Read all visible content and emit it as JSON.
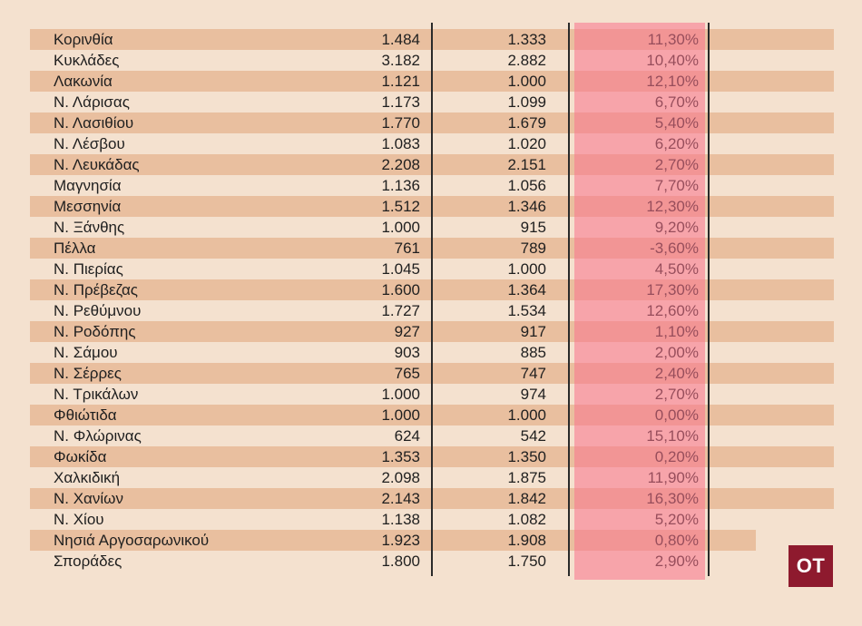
{
  "chart_data": {
    "type": "table",
    "rows": [
      {
        "region": "Κορινθία",
        "v1": "1.484",
        "v2": "1.333",
        "change": "11,30%"
      },
      {
        "region": "Κυκλάδες",
        "v1": "3.182",
        "v2": "2.882",
        "change": "10,40%"
      },
      {
        "region": "Λακωνία",
        "v1": "1.121",
        "v2": "1.000",
        "change": "12,10%"
      },
      {
        "region": "Ν. Λάρισας",
        "v1": "1.173",
        "v2": "1.099",
        "change": "6,70%"
      },
      {
        "region": "Ν. Λασιθίου",
        "v1": "1.770",
        "v2": "1.679",
        "change": "5,40%"
      },
      {
        "region": "Ν. Λέσβου",
        "v1": "1.083",
        "v2": "1.020",
        "change": "6,20%"
      },
      {
        "region": "Ν. Λευκάδας",
        "v1": "2.208",
        "v2": "2.151",
        "change": "2,70%"
      },
      {
        "region": "Μαγνησία",
        "v1": "1.136",
        "v2": "1.056",
        "change": "7,70%"
      },
      {
        "region": "Μεσσηνία",
        "v1": "1.512",
        "v2": "1.346",
        "change": "12,30%"
      },
      {
        "region": "Ν. Ξάνθης",
        "v1": "1.000",
        "v2": "915",
        "change": "9,20%"
      },
      {
        "region": "Πέλλα",
        "v1": "761",
        "v2": "789",
        "change": "-3,60%"
      },
      {
        "region": "Ν. Πιερίας",
        "v1": "1.045",
        "v2": "1.000",
        "change": "4,50%"
      },
      {
        "region": "Ν. Πρέβεζας",
        "v1": "1.600",
        "v2": "1.364",
        "change": "17,30%"
      },
      {
        "region": "Ν. Ρεθύμνου",
        "v1": "1.727",
        "v2": "1.534",
        "change": "12,60%"
      },
      {
        "region": "Ν. Ροδόπης",
        "v1": "927",
        "v2": "917",
        "change": "1,10%"
      },
      {
        "region": "Ν. Σάμου",
        "v1": "903",
        "v2": "885",
        "change": "2,00%"
      },
      {
        "region": "Ν. Σέρρες",
        "v1": "765",
        "v2": "747",
        "change": "2,40%"
      },
      {
        "region": "Ν. Τρικάλων",
        "v1": "1.000",
        "v2": "974",
        "change": "2,70%"
      },
      {
        "region": "Φθιώτιδα",
        "v1": "1.000",
        "v2": "1.000",
        "change": "0,00%"
      },
      {
        "region": "Ν. Φλώρινας",
        "v1": "624",
        "v2": "542",
        "change": "15,10%"
      },
      {
        "region": "Φωκίδα",
        "v1": "1.353",
        "v2": "1.350",
        "change": "0,20%"
      },
      {
        "region": "Χαλκιδική",
        "v1": "2.098",
        "v2": "1.875",
        "change": "11,90%"
      },
      {
        "region": "Ν. Χανίων",
        "v1": "2.143",
        "v2": "1.842",
        "change": "16,30%"
      },
      {
        "region": "Ν. Χίου",
        "v1": "1.138",
        "v2": "1.082",
        "change": "5,20%"
      },
      {
        "region": "Νησιά Αργοσαρωνικού",
        "v1": "1.923",
        "v2": "1.908",
        "change": "0,80%"
      },
      {
        "region": "Σποράδες",
        "v1": "1.800",
        "v2": "1.750",
        "change": "2,90%"
      }
    ]
  },
  "colors": {
    "background": "#f4e1cf",
    "stripe": "#e9bf9f",
    "highlight": "#fa738c",
    "logo": "#8e1a2e"
  },
  "logo": {
    "text": "OT"
  }
}
